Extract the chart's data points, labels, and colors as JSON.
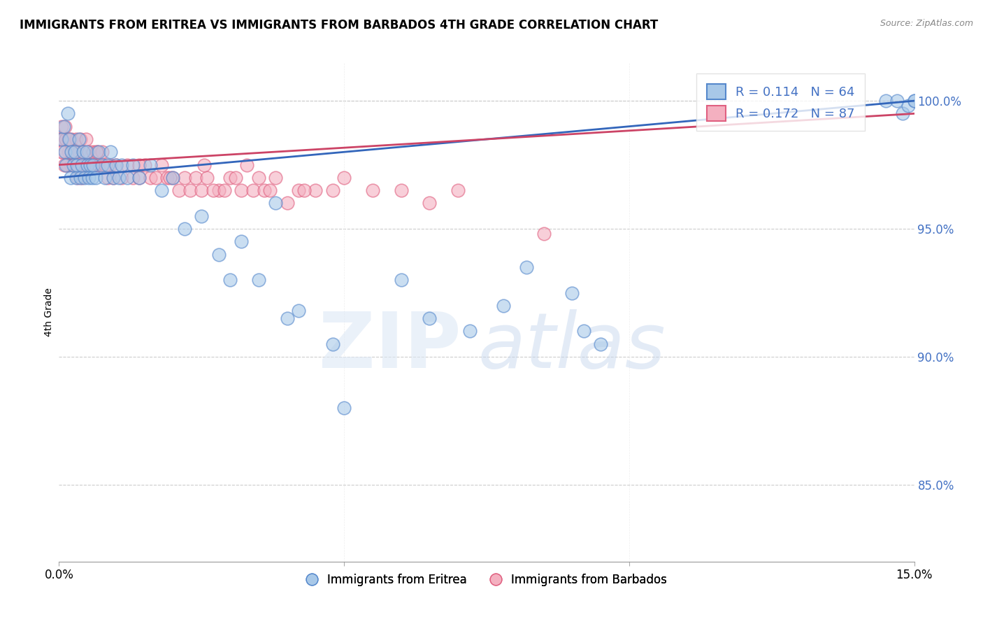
{
  "title": "IMMIGRANTS FROM ERITREA VS IMMIGRANTS FROM BARBADOS 4TH GRADE CORRELATION CHART",
  "source": "Source: ZipAtlas.com",
  "ylabel": "4th Grade",
  "xmin": 0.0,
  "xmax": 15.0,
  "ymin": 82.0,
  "ymax": 101.5,
  "yticks": [
    85.0,
    90.0,
    95.0,
    100.0
  ],
  "color_eritrea_fill": "#a8c8e8",
  "color_eritrea_edge": "#5588cc",
  "color_barbados_fill": "#f4b0c0",
  "color_barbados_edge": "#e06080",
  "color_eritrea_line": "#3366bb",
  "color_barbados_line": "#cc4466",
  "legend_r_eritrea": "0.114",
  "legend_n_eritrea": "64",
  "legend_r_barbados": "0.172",
  "legend_n_barbados": "87",
  "label_eritrea": "Immigrants from Eritrea",
  "label_barbados": "Immigrants from Barbados",
  "legend_text_color": "#4472c4",
  "ytick_color": "#4472c4",
  "xtick_left": "0.0%",
  "xtick_right": "15.0%",
  "eritrea_x": [
    0.05,
    0.08,
    0.1,
    0.12,
    0.15,
    0.18,
    0.2,
    0.22,
    0.25,
    0.28,
    0.3,
    0.32,
    0.35,
    0.38,
    0.4,
    0.42,
    0.45,
    0.48,
    0.5,
    0.52,
    0.55,
    0.58,
    0.6,
    0.65,
    0.7,
    0.75,
    0.8,
    0.85,
    0.9,
    0.95,
    1.0,
    1.05,
    1.1,
    1.2,
    1.3,
    1.4,
    1.6,
    1.8,
    2.0,
    2.2,
    2.5,
    2.8,
    3.0,
    3.2,
    3.5,
    4.0,
    4.2,
    4.8,
    5.0,
    3.8,
    6.0,
    6.5,
    7.2,
    7.8,
    8.2,
    9.0,
    9.2,
    9.5,
    14.5,
    14.7,
    14.8,
    14.9,
    15.0,
    15.0
  ],
  "eritrea_y": [
    98.5,
    99.0,
    98.0,
    97.5,
    99.5,
    98.5,
    97.0,
    98.0,
    97.5,
    98.0,
    97.0,
    97.5,
    98.5,
    97.0,
    97.5,
    98.0,
    97.0,
    98.0,
    97.5,
    97.0,
    97.5,
    97.0,
    97.5,
    97.0,
    98.0,
    97.5,
    97.0,
    97.5,
    98.0,
    97.0,
    97.5,
    97.0,
    97.5,
    97.0,
    97.5,
    97.0,
    97.5,
    96.5,
    97.0,
    95.0,
    95.5,
    94.0,
    93.0,
    94.5,
    93.0,
    91.5,
    91.8,
    90.5,
    88.0,
    96.0,
    93.0,
    91.5,
    91.0,
    92.0,
    93.5,
    92.5,
    91.0,
    90.5,
    100.0,
    100.0,
    99.5,
    99.8,
    100.0,
    100.0
  ],
  "barbados_x": [
    0.03,
    0.05,
    0.07,
    0.1,
    0.12,
    0.15,
    0.17,
    0.2,
    0.22,
    0.25,
    0.27,
    0.3,
    0.32,
    0.35,
    0.37,
    0.4,
    0.42,
    0.45,
    0.47,
    0.5,
    0.52,
    0.55,
    0.57,
    0.6,
    0.62,
    0.65,
    0.67,
    0.7,
    0.75,
    0.8,
    0.85,
    0.9,
    0.95,
    1.0,
    1.1,
    1.2,
    1.3,
    1.4,
    1.5,
    1.6,
    1.7,
    1.8,
    1.9,
    2.0,
    2.1,
    2.2,
    2.3,
    2.4,
    2.5,
    2.6,
    2.8,
    3.0,
    3.2,
    3.4,
    3.5,
    3.6,
    3.8,
    4.0,
    4.2,
    4.5,
    5.0,
    5.5,
    6.0,
    6.5,
    7.0,
    8.5,
    3.3,
    2.7,
    1.95,
    0.82,
    0.66,
    0.44,
    0.33,
    0.28,
    0.22,
    0.17,
    0.13,
    0.09,
    0.06,
    0.04,
    1.4,
    2.9,
    4.8,
    4.3,
    3.7,
    3.1,
    2.55
  ],
  "barbados_y": [
    98.5,
    99.0,
    98.5,
    99.0,
    98.5,
    97.5,
    98.0,
    97.5,
    98.5,
    97.5,
    98.0,
    98.5,
    97.5,
    98.0,
    98.5,
    97.0,
    98.0,
    97.5,
    98.5,
    97.5,
    98.0,
    97.5,
    97.5,
    98.0,
    97.5,
    97.5,
    98.0,
    97.5,
    98.0,
    97.5,
    97.0,
    97.5,
    97.0,
    97.5,
    97.0,
    97.5,
    97.0,
    97.0,
    97.5,
    97.0,
    97.0,
    97.5,
    97.0,
    97.0,
    96.5,
    97.0,
    96.5,
    97.0,
    96.5,
    97.0,
    96.5,
    97.0,
    96.5,
    96.5,
    97.0,
    96.5,
    97.0,
    96.0,
    96.5,
    96.5,
    97.0,
    96.5,
    96.5,
    96.0,
    96.5,
    94.8,
    97.5,
    96.5,
    97.0,
    97.5,
    98.0,
    97.5,
    97.0,
    97.5,
    98.0,
    98.5,
    97.5,
    97.5,
    98.0,
    98.0,
    97.5,
    96.5,
    96.5,
    96.5,
    96.5,
    97.0,
    97.5
  ]
}
